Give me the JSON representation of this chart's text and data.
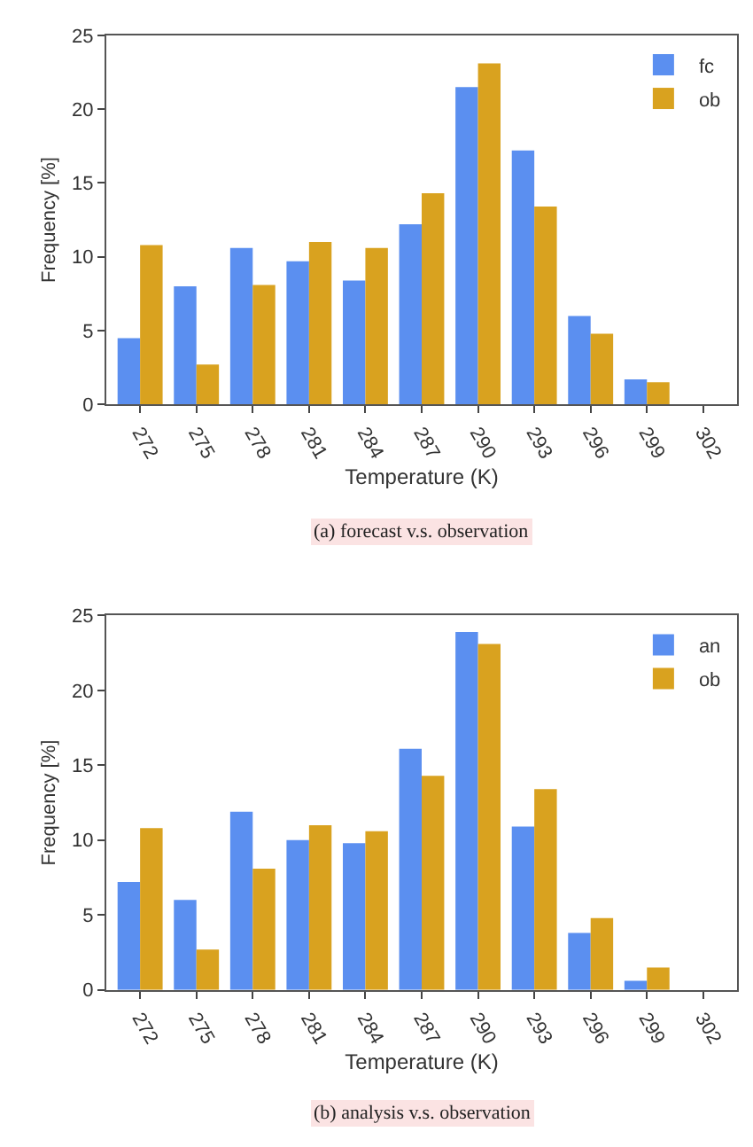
{
  "chart_data": [
    {
      "type": "bar",
      "xlabel": "Temperature (K)",
      "ylabel": "Frequency [%]",
      "annotations": [
        "(a) forecast v.s. observation"
      ],
      "categories": [
        "272",
        "275",
        "278",
        "281",
        "284",
        "287",
        "290",
        "293",
        "296",
        "299",
        "302"
      ],
      "ylim": [
        0,
        25
      ],
      "yticks": [
        0,
        5,
        10,
        15,
        20,
        25
      ],
      "legend": "top right",
      "series": [
        {
          "name": "fc",
          "color": "#5b8ff0",
          "values": [
            4.5,
            8.0,
            10.6,
            9.7,
            8.4,
            12.2,
            21.5,
            17.2,
            6.0,
            1.7,
            null
          ]
        },
        {
          "name": "ob",
          "color": "#d9a21f",
          "values": [
            10.8,
            2.7,
            8.1,
            11.0,
            10.6,
            14.3,
            23.1,
            13.4,
            4.8,
            1.5,
            null
          ]
        }
      ]
    },
    {
      "type": "bar",
      "xlabel": "Temperature (K)",
      "ylabel": "Frequency [%]",
      "annotations": [
        "(b) analysis v.s. observation"
      ],
      "categories": [
        "272",
        "275",
        "278",
        "281",
        "284",
        "287",
        "290",
        "293",
        "296",
        "299",
        "302"
      ],
      "ylim": [
        0,
        25
      ],
      "yticks": [
        0,
        5,
        10,
        15,
        20,
        25
      ],
      "legend": "top right",
      "series": [
        {
          "name": "an",
          "color": "#5b8ff0",
          "values": [
            7.2,
            6.0,
            11.9,
            10.0,
            9.8,
            16.1,
            23.9,
            10.9,
            3.8,
            0.6,
            null
          ]
        },
        {
          "name": "ob",
          "color": "#d9a21f",
          "values": [
            10.8,
            2.7,
            8.1,
            11.0,
            10.6,
            14.3,
            23.1,
            13.4,
            4.8,
            1.5,
            null
          ]
        }
      ]
    }
  ]
}
